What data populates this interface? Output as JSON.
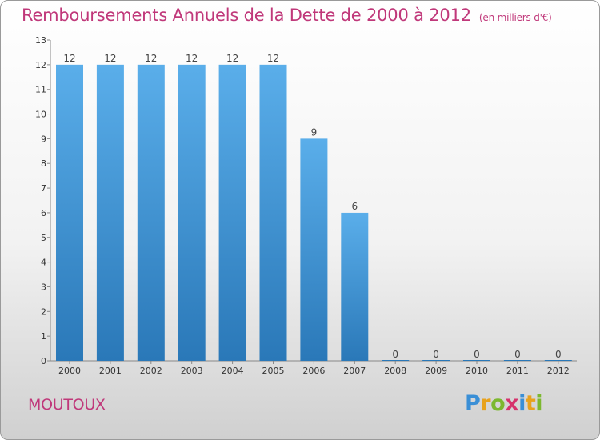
{
  "header": {
    "title": "Remboursements Annuels de la Dette de 2000 à 2012",
    "subtitle": "(en milliers d'€)"
  },
  "footer": {
    "place": "MOUTOUX",
    "logo": {
      "p": "P",
      "r": "r",
      "o": "o",
      "x": "x",
      "i1": "i",
      "t": "t",
      "i2": "i"
    }
  },
  "colors": {
    "title": "#c0387a",
    "bar_top": "#5aaeea",
    "bar_bottom": "#2a78b8"
  },
  "chart_data": {
    "type": "bar",
    "title": "Remboursements Annuels de la Dette de 2000 à 2012",
    "subtitle": "(en milliers d'€)",
    "xlabel": "",
    "ylabel": "",
    "categories": [
      "2000",
      "2001",
      "2002",
      "2003",
      "2004",
      "2005",
      "2006",
      "2007",
      "2008",
      "2009",
      "2010",
      "2011",
      "2012"
    ],
    "values": [
      12,
      12,
      12,
      12,
      12,
      12,
      9,
      6,
      0,
      0,
      0,
      0,
      0
    ],
    "value_labels": [
      "12",
      "12",
      "12",
      "12",
      "12",
      "12",
      "9",
      "6",
      "0",
      "0",
      "0",
      "0",
      "0"
    ],
    "yticks": [
      "0",
      "1",
      "2",
      "3",
      "4",
      "5",
      "6",
      "7",
      "8",
      "9",
      "10",
      "11",
      "12",
      "13"
    ],
    "ylim": [
      0,
      13
    ],
    "grid": false,
    "legend": "none"
  }
}
